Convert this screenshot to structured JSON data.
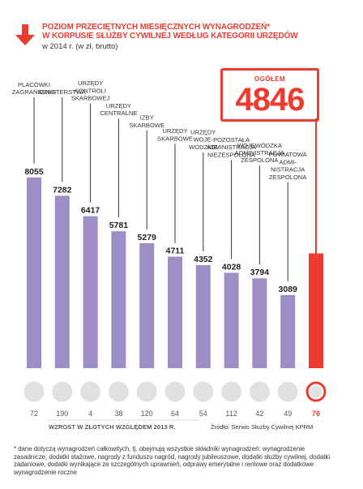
{
  "chart_data": {
    "type": "bar",
    "title_lines": [
      "POZIOM PRZECIĘTNYCH MIESIĘCZNYCH WYNAGRODZEŃ*",
      "W KORPUSIE SŁUŻBY CYWILNEJ WEDŁUG KATEGORII URZĘDÓW"
    ],
    "subtitle": "w 2014 r. (w zł, brutto)",
    "total": {
      "label": "OGÓŁEM",
      "value": "4846"
    },
    "categories": [
      [
        "PLACÓWKI",
        "ZAGRANICZNE"
      ],
      [
        "MINISTERSTWA"
      ],
      [
        "URZĘDY",
        "KONTROLI",
        "SKARBOWEJ"
      ],
      [
        "URZĘDY",
        "CENTRALNE"
      ],
      [
        "IZBY",
        "SKARBOWE"
      ],
      [
        "URZĘDY",
        "SKARBOWE"
      ],
      [
        "URZĘDY",
        "WOJE-",
        "WÓDZKIE"
      ],
      [
        "POZOSTAŁA",
        "ADMINISTRACJA",
        "NIEZESPOLONA"
      ],
      [
        "WOJEWÓDZKA",
        "ADMINISTRACJA",
        "ZESPOLONA"
      ],
      [
        "POWIATOWA",
        "ADMI-",
        "NISTRACJA",
        "ZESPOLONA"
      ],
      []
    ],
    "values": [
      8055,
      7282,
      6417,
      5781,
      5279,
      4711,
      4352,
      4028,
      3794,
      3089,
      4846
    ],
    "value_labels": [
      "8055",
      "7282",
      "6417",
      "5781",
      "5279",
      "4711",
      "4352",
      "4028",
      "3794",
      "3089",
      ""
    ],
    "increases": [
      72,
      190,
      4,
      38,
      120,
      64,
      54,
      112,
      42,
      49,
      76
    ],
    "increase_labels": [
      "72",
      "190",
      "4",
      "38",
      "120",
      "64",
      "54",
      "112",
      "42",
      "49",
      "76"
    ],
    "increase_label": "WZROST W ZŁOTYCH WZGLĘDEM 2013 R.",
    "source": "Źródło: Serwis Służby Cywilnej KPRM",
    "footnote": "* dane dotyczą wynagrodzeń całkowitych, tj. obejmują wszystkie składniki wynagrodzeń: wynagrodzenie zasadnicze, dodatki stażowe, nagrody z funduszu nagród, nagrody jubileuszowe, dodatki służby cywilnej, dodatki zadaniowe, dodatki wynikające ze szczególnych uprawnień, odprawy emerytalne i rentowe oraz dodatkowe wynagrodzenie roczne",
    "colors": {
      "bar": "#9d8fc5",
      "total_bar": "#ec3b2f",
      "accent": "#ec3b2f",
      "circle": "#e1e1e1",
      "stem": "#333333"
    },
    "highlight_index": 10
  }
}
